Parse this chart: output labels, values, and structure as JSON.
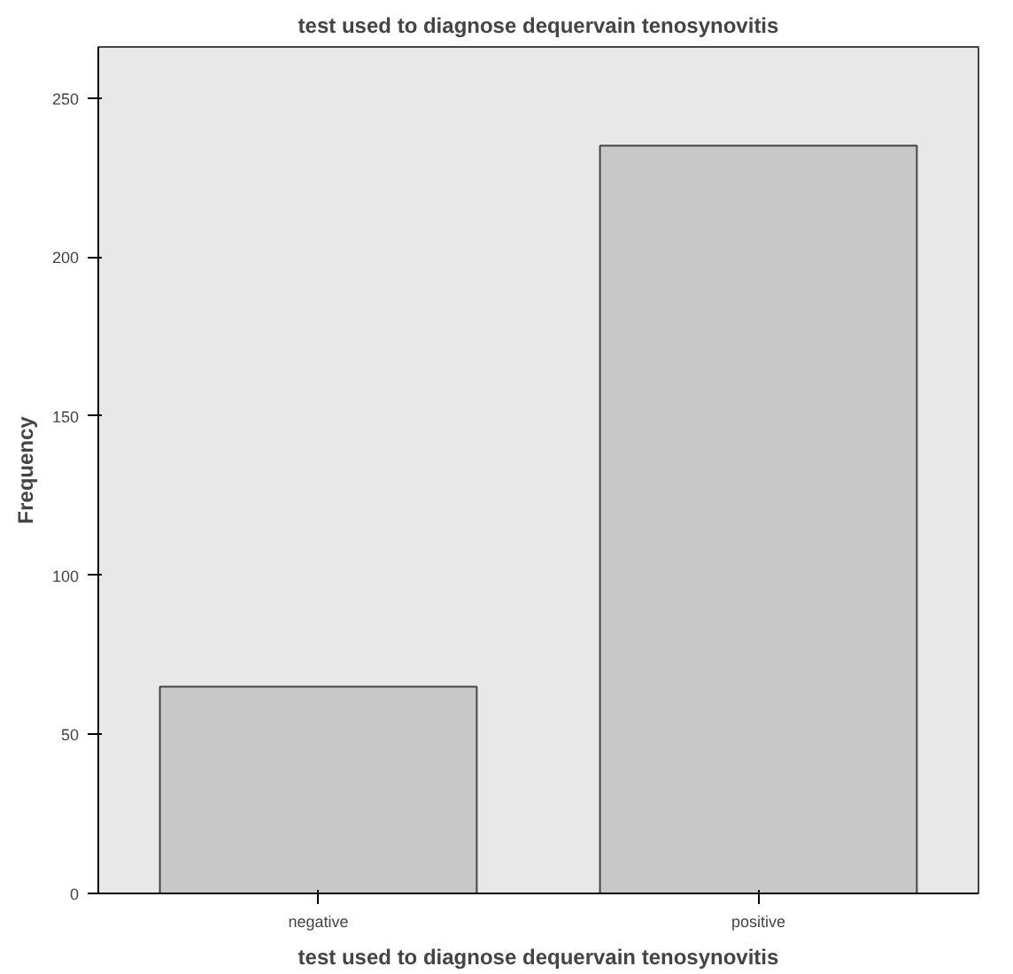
{
  "chart_data": {
    "type": "bar",
    "title": "test used to diagnose dequervain tenosynovitis",
    "xlabel": "test used to diagnose dequervain tenosynovitis",
    "ylabel": "Frequency",
    "categories": [
      "negative",
      "positive"
    ],
    "values": [
      65,
      235
    ],
    "color": "#c8c8c8",
    "ylim": [
      0,
      266
    ],
    "yticks": [
      0,
      50,
      100,
      150,
      200,
      250
    ],
    "grid": false
  }
}
